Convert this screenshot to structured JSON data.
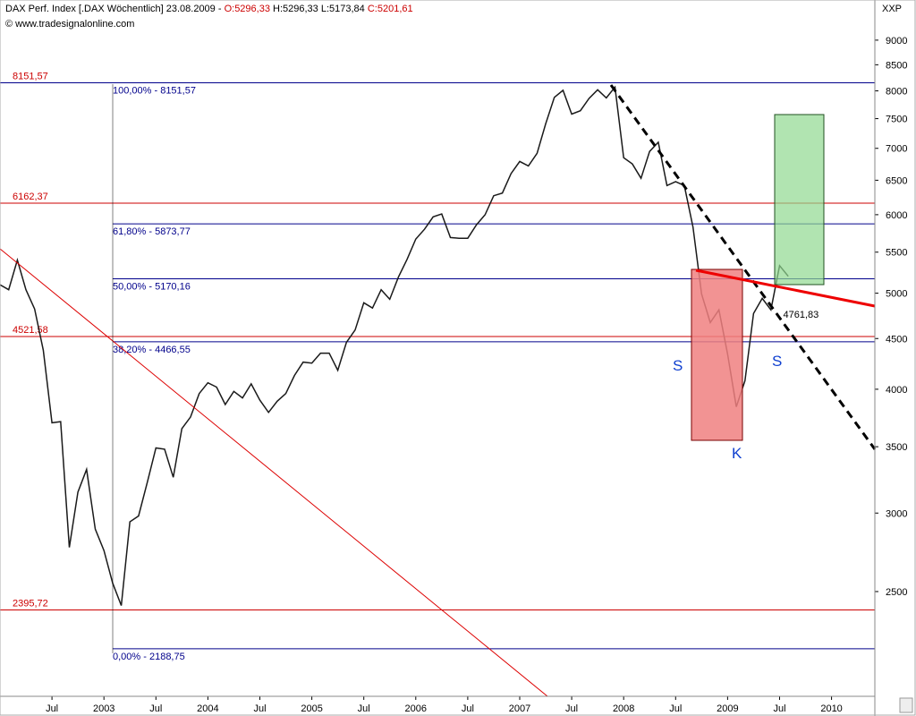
{
  "header": {
    "title": "DAX Perf. Index [.DAX  Wöchentlich] 23.08.2009 - ",
    "open": "O:5296,33",
    "high": "H:5296,33",
    "low": "L:5173,84",
    "close": "C:5201,61",
    "source": "© www.tradesignalonline.com",
    "axis_code": "XXP"
  },
  "chart_data": {
    "type": "line",
    "log_scale": true,
    "color": "#1a1a1a",
    "x": [
      "2002-01",
      "2002-02",
      "2002-03",
      "2002-04",
      "2002-05",
      "2002-06",
      "2002-07",
      "2002-08",
      "2002-09",
      "2002-10",
      "2002-11",
      "2002-12",
      "2003-01",
      "2003-02",
      "2003-03",
      "2003-04",
      "2003-05",
      "2003-06",
      "2003-07",
      "2003-08",
      "2003-09",
      "2003-10",
      "2003-11",
      "2003-12",
      "2004-01",
      "2004-02",
      "2004-03",
      "2004-04",
      "2004-05",
      "2004-06",
      "2004-07",
      "2004-08",
      "2004-09",
      "2004-10",
      "2004-11",
      "2004-12",
      "2005-01",
      "2005-02",
      "2005-03",
      "2005-04",
      "2005-05",
      "2005-06",
      "2005-07",
      "2005-08",
      "2005-09",
      "2005-10",
      "2005-11",
      "2005-12",
      "2006-01",
      "2006-02",
      "2006-03",
      "2006-04",
      "2006-05",
      "2006-06",
      "2006-07",
      "2006-08",
      "2006-09",
      "2006-10",
      "2006-11",
      "2006-12",
      "2007-01",
      "2007-02",
      "2007-03",
      "2007-04",
      "2007-05",
      "2007-06",
      "2007-07",
      "2007-08",
      "2007-09",
      "2007-10",
      "2007-11",
      "2007-12",
      "2008-01",
      "2008-02",
      "2008-03",
      "2008-04",
      "2008-05",
      "2008-06",
      "2008-07",
      "2008-08",
      "2008-09",
      "2008-10",
      "2008-11",
      "2008-12",
      "2009-01",
      "2009-02",
      "2009-03",
      "2009-04",
      "2009-05",
      "2009-06",
      "2009-07",
      "2009-08"
    ],
    "values": [
      5100,
      5040,
      5400,
      5040,
      4820,
      4380,
      3700,
      3710,
      2770,
      3150,
      3320,
      2890,
      2750,
      2550,
      2420,
      2940,
      2980,
      3220,
      3490,
      3480,
      3260,
      3650,
      3750,
      3960,
      4060,
      4020,
      3860,
      3980,
      3920,
      4050,
      3900,
      3790,
      3890,
      3960,
      4130,
      4260,
      4250,
      4350,
      4350,
      4180,
      4460,
      4590,
      4890,
      4830,
      5040,
      4930,
      5190,
      5410,
      5670,
      5800,
      5970,
      6010,
      5690,
      5680,
      5680,
      5860,
      6000,
      6270,
      6310,
      6600,
      6790,
      6720,
      6920,
      7410,
      7880,
      8010,
      7580,
      7640,
      7860,
      8020,
      7870,
      8070,
      6850,
      6750,
      6530,
      6950,
      7100,
      6420,
      6480,
      6420,
      5830,
      4990,
      4670,
      4810,
      4340,
      3840,
      4080,
      4770,
      4940,
      4810,
      5330,
      5200
    ],
    "xlim": [
      "2002-01",
      "2010-06"
    ],
    "xticks": [
      {
        "value": "2002-07",
        "label": "Jul"
      },
      {
        "value": "2003-01",
        "label": "2003"
      },
      {
        "value": "2003-07",
        "label": "Jul"
      },
      {
        "value": "2004-01",
        "label": "2004"
      },
      {
        "value": "2004-07",
        "label": "Jul"
      },
      {
        "value": "2005-01",
        "label": "2005"
      },
      {
        "value": "2005-07",
        "label": "Jul"
      },
      {
        "value": "2006-01",
        "label": "2006"
      },
      {
        "value": "2006-07",
        "label": "Jul"
      },
      {
        "value": "2007-01",
        "label": "2007"
      },
      {
        "value": "2007-07",
        "label": "Jul"
      },
      {
        "value": "2008-01",
        "label": "2008"
      },
      {
        "value": "2008-07",
        "label": "Jul"
      },
      {
        "value": "2009-01",
        "label": "2009"
      },
      {
        "value": "2009-07",
        "label": "Jul"
      },
      {
        "value": "2010-01",
        "label": "2010"
      }
    ],
    "ylim": [
      1960,
      9880
    ],
    "yticks": [
      2500,
      3000,
      3500,
      4000,
      4500,
      5000,
      5500,
      6000,
      6500,
      7000,
      7500,
      8000,
      8500,
      9000
    ],
    "levels": [
      {
        "value": 8151.57,
        "label": "8151,57"
      },
      {
        "value": 6162.37,
        "label": "6162,37"
      },
      {
        "value": 4521.58,
        "label": "4521,58"
      },
      {
        "value": 2395.72,
        "label": "2395,72"
      }
    ],
    "level_color": "#cc0000",
    "fib_levels": [
      {
        "value": 8151.57,
        "label": "100,00% - 8151,57"
      },
      {
        "value": 5873.77,
        "label": "61,80% - 5873,77"
      },
      {
        "value": 5170.16,
        "label": "50,00% - 5170,16"
      },
      {
        "value": 4466.55,
        "label": "38,20% - 4466,55"
      },
      {
        "value": 2188.75,
        "label": "0,00% - 2188,75"
      }
    ],
    "fib_color": "#00008b",
    "price_label": {
      "x": "2009-07",
      "value": 4761.83,
      "label": "4761,83"
    },
    "annotations": [
      "S",
      "K",
      "S"
    ]
  }
}
